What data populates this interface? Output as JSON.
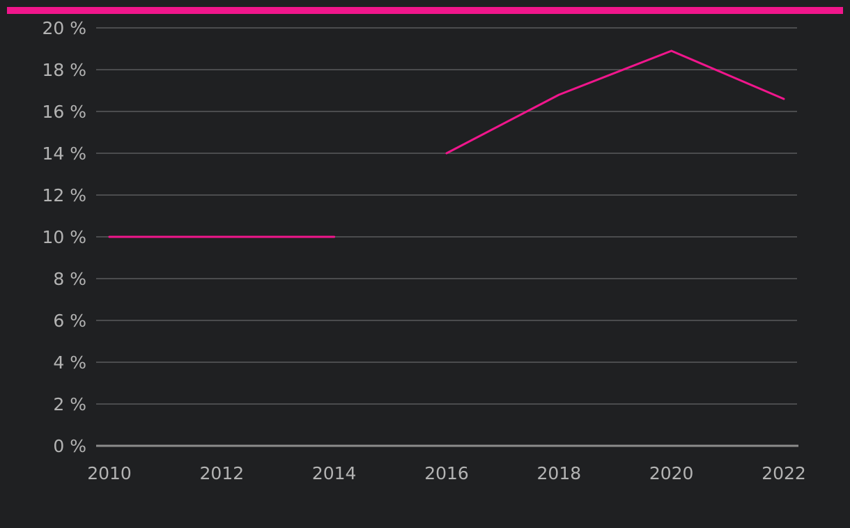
{
  "colors": {
    "background": "#1f2022",
    "accent": "#f0168c",
    "gridline": "#5a5a5c",
    "baseline": "#8c8c8c",
    "tick_text": "#b3b3b3"
  },
  "chart_data": {
    "type": "line",
    "title": "",
    "xlabel": "",
    "ylabel": "",
    "x_ticks": [
      "2010",
      "2012",
      "2014",
      "2016",
      "2018",
      "2020",
      "2022"
    ],
    "y_ticks": [
      "0 %",
      "2 %",
      "4 %",
      "6 %",
      "8 %",
      "10 %",
      "12 %",
      "14 %",
      "16 %",
      "18 %",
      "20 %"
    ],
    "xlim": [
      2010,
      2022
    ],
    "ylim": [
      0,
      20
    ],
    "grid": true,
    "legend": "none",
    "series": [
      {
        "color": "#f0168c",
        "segments": [
          [
            [
              2010,
              10
            ],
            [
              2014,
              10
            ]
          ],
          [
            [
              2016,
              14
            ],
            [
              2018,
              16.8
            ],
            [
              2020,
              18.9
            ],
            [
              2022,
              16.6
            ]
          ]
        ]
      }
    ]
  }
}
